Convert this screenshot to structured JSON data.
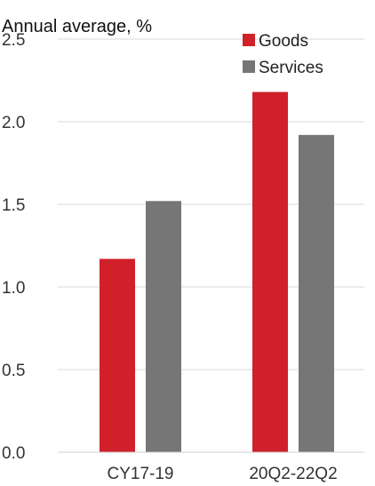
{
  "chart_data": {
    "type": "bar",
    "title": "Annual average, %",
    "categories": [
      "CY17-19",
      "20Q2-22Q2"
    ],
    "series": [
      {
        "name": "Goods",
        "values": [
          1.17,
          2.18
        ],
        "color": "#d0202a"
      },
      {
        "name": "Services",
        "values": [
          1.52,
          1.92
        ],
        "color": "#767676"
      }
    ],
    "yticks": [
      "0.0",
      "0.5",
      "1.0",
      "1.5",
      "2.0",
      "2.5"
    ],
    "ylim": [
      0,
      2.5
    ],
    "grid": true,
    "legend_position": "top-right"
  }
}
